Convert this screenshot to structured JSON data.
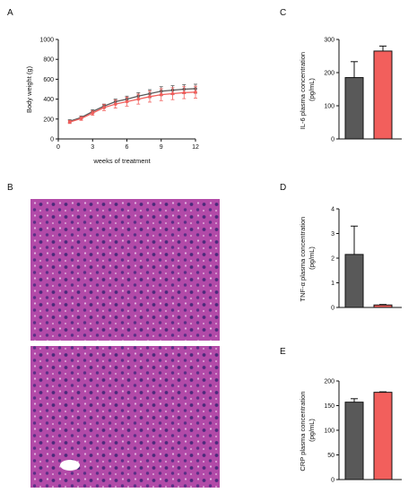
{
  "panel_letters": [
    "A",
    "B",
    "C",
    "D",
    "E"
  ],
  "colors": {
    "control": "#595959",
    "treatment": "#f25f5c",
    "axis": "#111111"
  },
  "chart_data": [
    {
      "panel": "A",
      "type": "line",
      "xlabel": "weeks of treatment",
      "ylabel": "Body weight (g)",
      "xlim": [
        0,
        12
      ],
      "ylim": [
        0,
        1000
      ],
      "xticks": [
        0,
        3,
        6,
        9,
        12
      ],
      "yticks": [
        0,
        200,
        400,
        600,
        800,
        1000
      ],
      "x": [
        1,
        2,
        3,
        4,
        5,
        6,
        7,
        8,
        9,
        10,
        11,
        12
      ],
      "series": [
        {
          "values": [
            178,
            215,
            275,
            330,
            375,
            400,
            430,
            455,
            480,
            490,
            500,
            505
          ],
          "errors": [
            15,
            15,
            18,
            20,
            25,
            30,
            35,
            40,
            45,
            45,
            45,
            45
          ],
          "color": "#595959"
        },
        {
          "values": [
            170,
            205,
            260,
            315,
            350,
            375,
            400,
            425,
            445,
            455,
            465,
            470
          ],
          "errors": [
            15,
            18,
            22,
            30,
            40,
            45,
            50,
            55,
            60,
            60,
            60,
            60
          ],
          "color": "#f25f5c"
        }
      ]
    },
    {
      "panel": "C",
      "type": "bar",
      "ylabel": "IL-6 plasma concentration (pg/mL)",
      "ylabel_lines": [
        "IL-6 plasma concentration",
        "(pg/mL)"
      ],
      "ylim": [
        0,
        300
      ],
      "yticks": [
        0,
        100,
        200,
        300
      ],
      "values": [
        185,
        265
      ],
      "errors": [
        48,
        15
      ],
      "colors": [
        "#595959",
        "#f25f5c"
      ]
    },
    {
      "panel": "D",
      "type": "bar",
      "ylabel": "TNF-α plasma concentration (pg/mL)",
      "ylabel_lines": [
        "TNF-α plasma concentration",
        "(pg/mL)"
      ],
      "ylim": [
        0,
        4
      ],
      "yticks": [
        0,
        1,
        2,
        3,
        4
      ],
      "values": [
        2.15,
        0.1
      ],
      "errors": [
        1.15,
        0.02
      ],
      "colors": [
        "#595959",
        "#f25f5c"
      ]
    },
    {
      "panel": "E",
      "type": "bar",
      "ylabel": "CRP plasma concentration (pg/mL)",
      "ylabel_lines": [
        "CRP plasma concentration",
        "(pg/mL)"
      ],
      "ylim": [
        0,
        200
      ],
      "yticks": [
        0,
        50,
        100,
        150,
        200
      ],
      "values": [
        157,
        177
      ],
      "errors": [
        7,
        1
      ],
      "colors": [
        "#595959",
        "#f25f5c"
      ]
    }
  ]
}
